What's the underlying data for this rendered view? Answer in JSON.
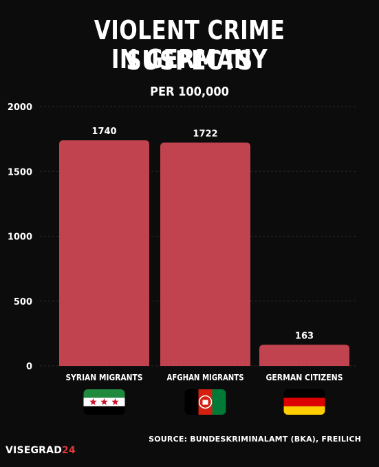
{
  "title_line1": "VIOLENT CRIME SUSPECTS",
  "title_line2": "IN GERMANY",
  "subtitle": "PER 100,000",
  "source": "SOURCE:  BUNDESKRIMINALAMT (BKA), FREILICH",
  "brand": {
    "main": "VISEGRAD",
    "accent": "24"
  },
  "colors": {
    "bar": "#c1434f",
    "background": "#0c0c0c",
    "text": "#ffffff",
    "brand_accent": "#d93a3a"
  },
  "chart_data": {
    "type": "bar",
    "title": "VIOLENT CRIME SUSPECTS IN GERMANY",
    "subtitle": "PER 100,000",
    "categories": [
      "SYRIAN MIGRANTS",
      "AFGHAN MIGRANTS",
      "GERMAN CITIZENS"
    ],
    "values": [
      1740,
      1722,
      163
    ],
    "data_labels": [
      "1740",
      "1722",
      "163"
    ],
    "ylim": [
      0,
      2000
    ],
    "yticks": [
      0,
      500,
      1000,
      1500,
      2000
    ],
    "grid": true,
    "legend": "none",
    "category_icons": [
      "syria-flag-icon",
      "afghanistan-flag-icon",
      "germany-flag-icon"
    ]
  }
}
